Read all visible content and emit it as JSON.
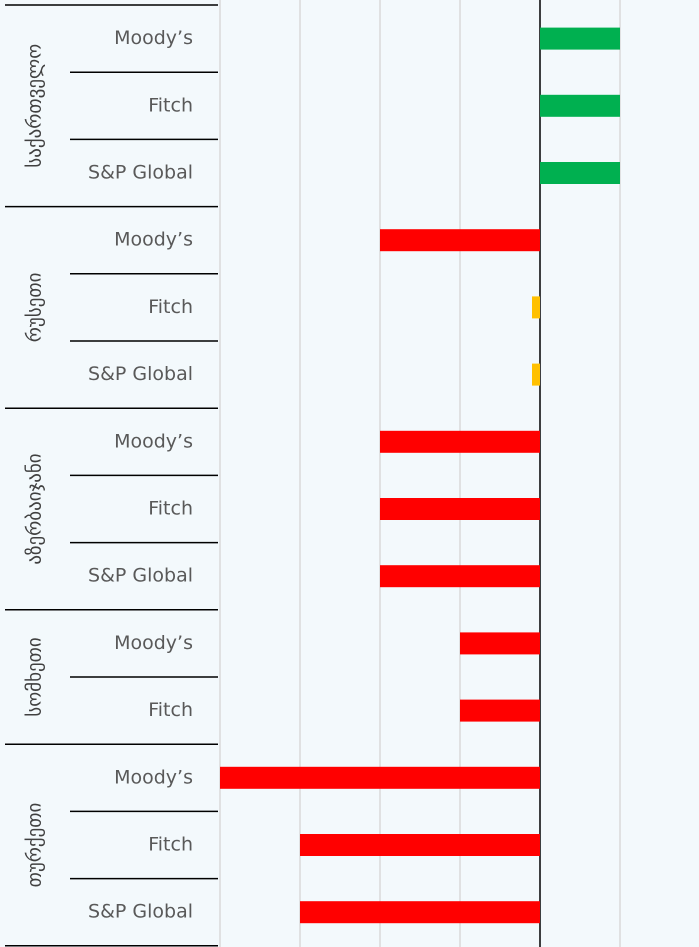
{
  "chart_data": {
    "type": "bar",
    "groups": [
      {
        "name": "საქართველო",
        "categories": [
          "Moody’s",
          "Fitch",
          "S&P Global"
        ],
        "values": [
          1,
          1,
          1
        ],
        "colors": [
          "#00b050",
          "#00b050",
          "#00b050"
        ]
      },
      {
        "name": "რუსეთი",
        "categories": [
          "Moody’s",
          "Fitch",
          "S&P Global"
        ],
        "values": [
          -2,
          -0.1,
          -0.1
        ],
        "colors": [
          "#ff0000",
          "#ffc000",
          "#ffc000"
        ]
      },
      {
        "name": "აზერბაიჯანი",
        "categories": [
          "Moody’s",
          "Fitch",
          "S&P Global"
        ],
        "values": [
          -2,
          -2,
          -2
        ],
        "colors": [
          "#ff0000",
          "#ff0000",
          "#ff0000"
        ]
      },
      {
        "name": "სომხეთი",
        "categories": [
          "Moody’s",
          "Fitch"
        ],
        "values": [
          -1,
          -1
        ],
        "colors": [
          "#ff0000",
          "#ff0000"
        ]
      },
      {
        "name": "თურქეთი",
        "categories": [
          "Moody’s",
          "Fitch",
          "S&P Global"
        ],
        "values": [
          -4,
          -3,
          -3
        ],
        "colors": [
          "#ff0000",
          "#ff0000",
          "#ff0000"
        ]
      }
    ],
    "xlim": [
      -4,
      2
    ],
    "xticks": [
      -4,
      -3,
      -2,
      -1,
      0,
      1,
      2
    ],
    "grid": true
  }
}
